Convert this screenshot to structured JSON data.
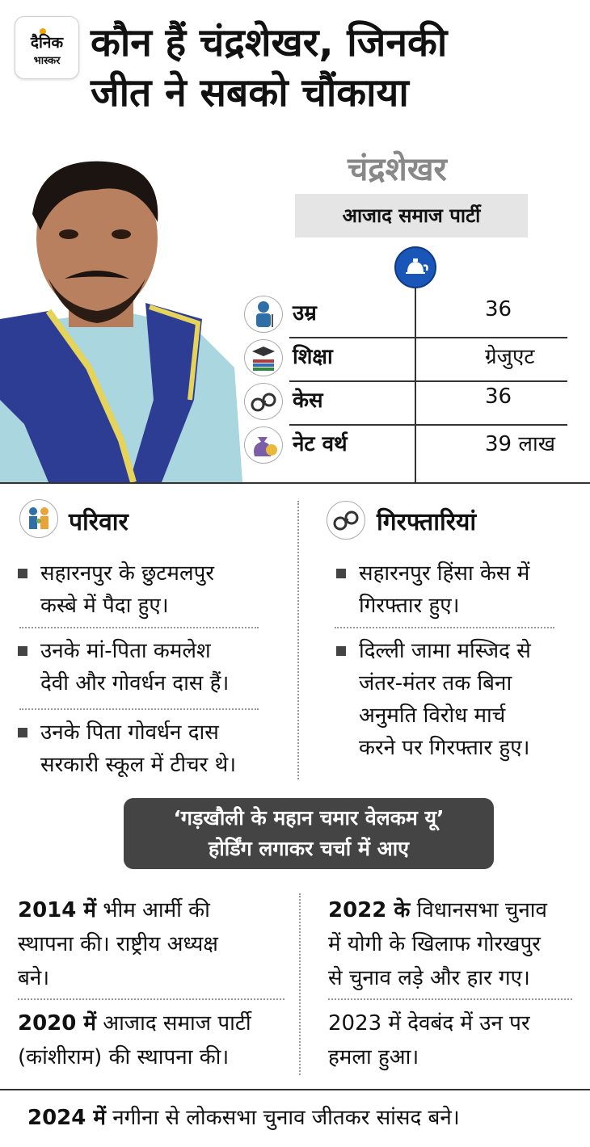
{
  "logo": {
    "line1": "दैनिक",
    "line2": "भास्कर"
  },
  "headline": {
    "line1": "कौन हैं चंद्रशेखर, जिनकी",
    "line2": "जीत ने सबको चौंकाया"
  },
  "profile": {
    "name": "चंद्रशेखर",
    "party": "आजाद समाज पार्टी"
  },
  "stats": [
    {
      "icon": "age-person-icon",
      "label": "उम्र",
      "value": "36"
    },
    {
      "icon": "education-books-icon",
      "label": "शिक्षा",
      "value": "ग्रेजुएट"
    },
    {
      "icon": "handcuffs-icon",
      "label": "केस",
      "value": "36"
    },
    {
      "icon": "money-bag-icon",
      "label": "नेट वर्थ",
      "value": "39 लाख"
    }
  ],
  "family": {
    "heading": "परिवार",
    "items": [
      [
        "सहारनपुर के छुटमलपुर",
        "कस्बे में पैदा हुए।"
      ],
      [
        "उनके मां-पिता कमलेश",
        "देवी और गोवर्धन दास हैं।"
      ],
      [
        "उनके पिता गोवर्धन दास",
        "सरकारी स्कूल में टीचर थे।"
      ]
    ]
  },
  "arrests": {
    "heading": "गिरफ्तारियां",
    "items": [
      [
        "सहारनपुर हिंसा केस में",
        "गिरफ्तार हुए।"
      ],
      [
        "दिल्ली जामा मस्जिद से",
        "जंतर-मंतर तक बिना",
        "अनुमति विरोध मार्च",
        "करने पर गिरफ्तार हुए।"
      ]
    ]
  },
  "banner": {
    "line1": "‘गड़खौली के महान चमार वेलकम यू’",
    "line2": "होर्डिंग लगाकर चर्चा में आए"
  },
  "timeline": {
    "e2014": {
      "year": "2014 में",
      "rest": " भीम आर्मी की",
      "line2": "स्थापना की। राष्ट्रीय अध्यक्ष",
      "line3": "बने।"
    },
    "e2020": {
      "year": "2020 में",
      "rest": " आजाद समाज पार्टी",
      "line2": "(कांशीराम) की स्थापना की।"
    },
    "e2022": {
      "year": "2022 के",
      "rest": " विधानसभा चुनाव",
      "line2": "में योगी के खिलाफ गोरखपुर",
      "line3": "से चुनाव लड़े और हार गए।"
    },
    "e2023": {
      "line1": "2023 में देवबंद में उन पर",
      "line2": "हमला हुआ।"
    }
  },
  "footer": {
    "year": "2024 में",
    "rest": " नगीना से लोकसभा चुनाव जीतकर सांसद बने।"
  }
}
